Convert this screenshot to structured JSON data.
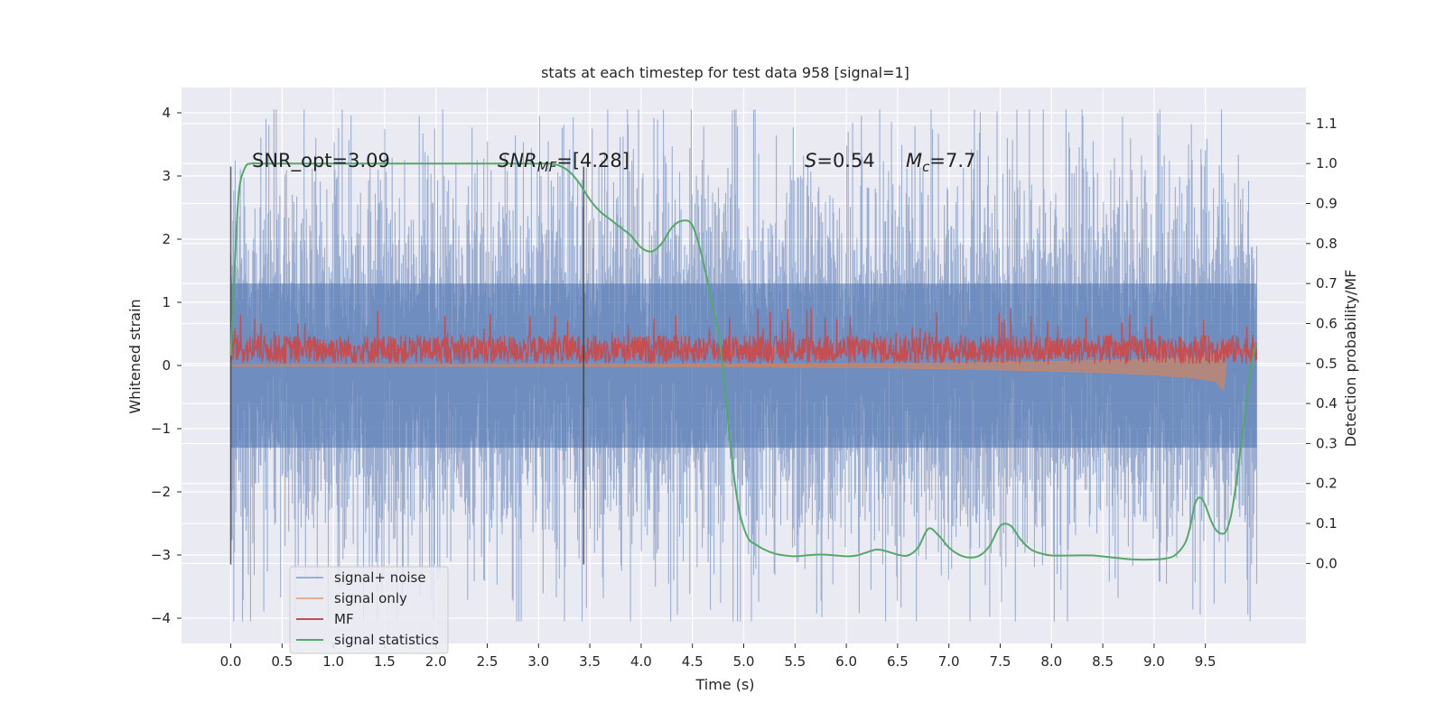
{
  "chart_data": {
    "type": "line",
    "title": "stats at each timestep for test data 958 [signal=1]",
    "xlabel": "Time (s)",
    "ylabel": "Whitened strain",
    "ylabel_right": "Detection probability/MF",
    "xlim": [
      -0.48,
      10.48
    ],
    "ylim": [
      -4.4,
      4.4
    ],
    "ylim_right": [
      -0.2,
      1.19
    ],
    "x_ticks": [
      0.0,
      0.5,
      1.0,
      1.5,
      2.0,
      2.5,
      3.0,
      3.5,
      4.0,
      4.5,
      5.0,
      5.5,
      6.0,
      6.5,
      7.0,
      7.5,
      8.0,
      8.5,
      9.0,
      9.5
    ],
    "x_tick_labels": [
      "0.0",
      "0.5",
      "1.0",
      "1.5",
      "2.0",
      "2.5",
      "3.0",
      "3.5",
      "4.0",
      "4.5",
      "5.0",
      "5.5",
      "6.0",
      "6.5",
      "7.0",
      "7.5",
      "8.0",
      "8.5",
      "9.0",
      "9.5"
    ],
    "y_ticks": [
      -4,
      -3,
      -2,
      -1,
      0,
      1,
      2,
      3,
      4
    ],
    "y_tick_labels": [
      "−4",
      "−3",
      "−2",
      "−1",
      "0",
      "1",
      "2",
      "3",
      "4"
    ],
    "y_right_ticks": [
      0.0,
      0.1,
      0.2,
      0.3,
      0.4,
      0.5,
      0.6,
      0.7,
      0.8,
      0.9,
      1.0,
      1.1
    ],
    "y_right_tick_labels": [
      "0.0",
      "0.1",
      "0.2",
      "0.3",
      "0.4",
      "0.5",
      "0.6",
      "0.7",
      "0.8",
      "0.9",
      "1.0",
      "1.1"
    ],
    "grid": true,
    "legend_position": "lower-left",
    "annotations": {
      "snr_opt": "SNR_opt=3.09",
      "snr_mf_sym": "SNR",
      "snr_mf_sub": "MF",
      "snr_mf_rest": "=[4.28]",
      "s_sym": "S",
      "s_rest": "=0.54",
      "mc_sym": "M",
      "mc_sub": "c",
      "mc_rest": "=7.7"
    },
    "vertical_lines": [
      {
        "x": 0.0,
        "y_range": [
          -3.15,
          3.15
        ]
      },
      {
        "x": 3.44,
        "y_range": [
          -3.15,
          3.15
        ]
      }
    ],
    "series": [
      {
        "name": "signal+ noise",
        "color": "#4c72b0",
        "axis": "left",
        "x_range": [
          0.0,
          10.0
        ],
        "envelope": {
          "core": 1.3,
          "typical_peak": 2.5,
          "max_peak": 4.05,
          "min_peak": -4.05
        }
      },
      {
        "name": "signal only",
        "color": "#dd8452",
        "axis": "left",
        "x": [
          0.0,
          5.0,
          6.5,
          7.5,
          8.5,
          9.0,
          9.4,
          9.6,
          9.68,
          9.7
        ],
        "y_min": [
          -0.01,
          -0.02,
          -0.04,
          -0.07,
          -0.11,
          -0.15,
          -0.2,
          -0.25,
          -0.4,
          0.0
        ],
        "y_max": [
          0.01,
          0.02,
          0.03,
          0.05,
          0.08,
          0.11,
          0.15,
          0.18,
          0.25,
          0.0
        ]
      },
      {
        "name": "MF",
        "color": "#c44e52",
        "axis": "right",
        "x_range": [
          0.0,
          10.0
        ],
        "band": {
          "low": 0.5,
          "high": 0.57,
          "max_peak": 0.64
        }
      },
      {
        "name": "signal statistics",
        "color": "#55a868",
        "axis": "right",
        "x": [
          0.0,
          0.04,
          0.08,
          0.14,
          0.2,
          0.3,
          0.5,
          1.0,
          1.5,
          2.0,
          2.5,
          3.0,
          3.1,
          3.2,
          3.3,
          3.4,
          3.5,
          3.6,
          3.7,
          3.8,
          3.9,
          4.0,
          4.1,
          4.2,
          4.3,
          4.4,
          4.5,
          4.6,
          4.7,
          4.75,
          4.8,
          4.85,
          4.9,
          4.95,
          5.0,
          5.05,
          5.1,
          5.2,
          5.3,
          5.4,
          5.5,
          5.6,
          5.7,
          5.8,
          6.0,
          6.1,
          6.2,
          6.3,
          6.4,
          6.5,
          6.6,
          6.7,
          6.8,
          6.9,
          7.0,
          7.1,
          7.2,
          7.3,
          7.4,
          7.5,
          7.6,
          7.7,
          7.8,
          7.9,
          8.0,
          8.2,
          8.4,
          8.6,
          8.8,
          9.0,
          9.1,
          9.2,
          9.3,
          9.35,
          9.4,
          9.45,
          9.5,
          9.55,
          9.6,
          9.65,
          9.7,
          9.75,
          9.8,
          9.85,
          9.9,
          9.95,
          10.0
        ],
        "y": [
          0.52,
          0.75,
          0.93,
          0.99,
          1.0,
          1.0,
          1.0,
          1.0,
          1.0,
          1.0,
          1.0,
          1.0,
          1.0,
          0.995,
          0.98,
          0.95,
          0.91,
          0.88,
          0.86,
          0.84,
          0.82,
          0.79,
          0.78,
          0.8,
          0.84,
          0.857,
          0.845,
          0.76,
          0.64,
          0.58,
          0.48,
          0.35,
          0.23,
          0.14,
          0.09,
          0.06,
          0.05,
          0.035,
          0.025,
          0.02,
          0.018,
          0.02,
          0.022,
          0.022,
          0.018,
          0.02,
          0.028,
          0.035,
          0.03,
          0.022,
          0.02,
          0.04,
          0.087,
          0.07,
          0.04,
          0.022,
          0.015,
          0.02,
          0.045,
          0.094,
          0.095,
          0.06,
          0.035,
          0.025,
          0.02,
          0.02,
          0.02,
          0.015,
          0.01,
          0.01,
          0.012,
          0.02,
          0.05,
          0.09,
          0.15,
          0.165,
          0.145,
          0.11,
          0.085,
          0.075,
          0.08,
          0.12,
          0.2,
          0.3,
          0.4,
          0.5,
          0.55
        ]
      }
    ]
  }
}
